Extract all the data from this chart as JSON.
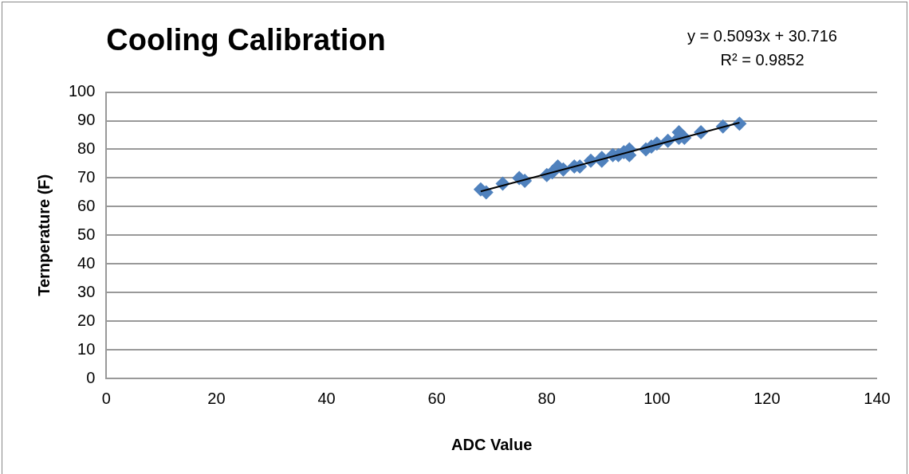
{
  "chart_data": {
    "type": "scatter",
    "title": "Cooling Calibration",
    "xlabel": "ADC Value",
    "ylabel": "Ternperature (F)",
    "annotations": [
      "y = 0.5093x + 30.716",
      "R² = 0.9852"
    ],
    "xlim": [
      0,
      140
    ],
    "xticks": [
      0,
      20,
      40,
      60,
      80,
      100,
      120,
      140
    ],
    "ylim": [
      0,
      100
    ],
    "yticks": [
      0,
      10,
      20,
      30,
      40,
      50,
      60,
      70,
      80,
      90,
      100
    ],
    "grid": "y",
    "legend": false,
    "marker": "diamond",
    "series": [
      {
        "type": "scatter",
        "color": "#4f81bd",
        "x": [
          68,
          69,
          72,
          75,
          76,
          80,
          81,
          82,
          83,
          85,
          86,
          88,
          90,
          90,
          92,
          93,
          94,
          95,
          95,
          98,
          99,
          100,
          102,
          104,
          104,
          105,
          108,
          112,
          115
        ],
        "values": [
          66,
          65,
          68,
          70,
          69,
          71,
          72,
          74,
          73,
          74,
          74,
          76,
          76,
          77,
          78,
          78,
          79,
          78,
          80,
          80,
          81,
          82,
          83,
          86,
          84,
          84,
          86,
          88,
          89
        ]
      },
      {
        "type": "line",
        "color": "#000000",
        "marker": "none",
        "x": [
          68,
          115
        ],
        "values": [
          65.3,
          89.3
        ]
      }
    ]
  }
}
